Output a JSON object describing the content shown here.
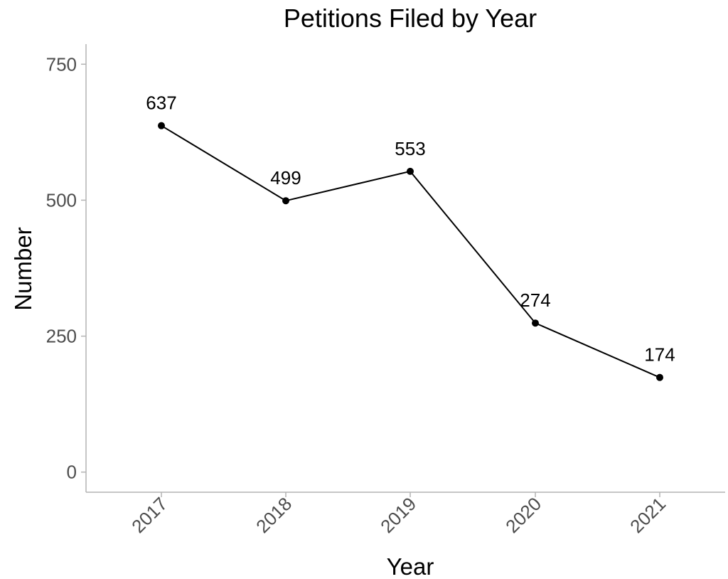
{
  "chart_data": {
    "type": "line",
    "title": "Petitions Filed by Year",
    "xlabel": "Year",
    "ylabel": "Number",
    "categories": [
      "2017",
      "2018",
      "2019",
      "2020",
      "2021"
    ],
    "series": [
      {
        "values": [
          637,
          499,
          553,
          274,
          174
        ]
      }
    ],
    "data_labels": [
      "637",
      "499",
      "553",
      "274",
      "174"
    ],
    "ylim": [
      -37,
      787
    ],
    "yticks": [
      0,
      250,
      500,
      750
    ],
    "ytick_labels": [
      "0",
      "250",
      "500",
      "750"
    ],
    "grid": false,
    "legend": "none",
    "colors": {
      "line": "#000000",
      "axis": "#b3b3b3",
      "tick_text": "#4d4d4d"
    }
  }
}
